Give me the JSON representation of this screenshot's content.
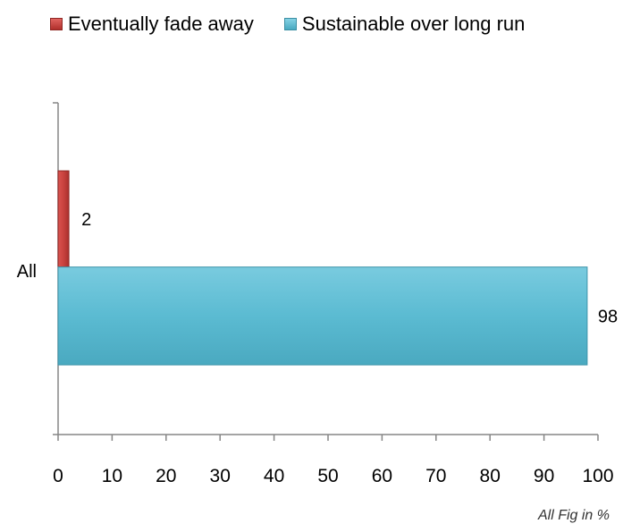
{
  "chart_data": {
    "type": "bar",
    "orientation": "horizontal",
    "categories": [
      "All"
    ],
    "series": [
      {
        "name": "Eventually fade away",
        "values": [
          2
        ],
        "color": "#c0403c"
      },
      {
        "name": "Sustainable over long run",
        "values": [
          98
        ],
        "color": "#5bbbd2"
      }
    ],
    "xlim": [
      0,
      100
    ],
    "xticks": [
      0,
      10,
      20,
      30,
      40,
      50,
      60,
      70,
      80,
      90,
      100
    ],
    "legend_position": "top-left",
    "grid": false,
    "data_labels": true
  },
  "footnote": "All Fig in %"
}
